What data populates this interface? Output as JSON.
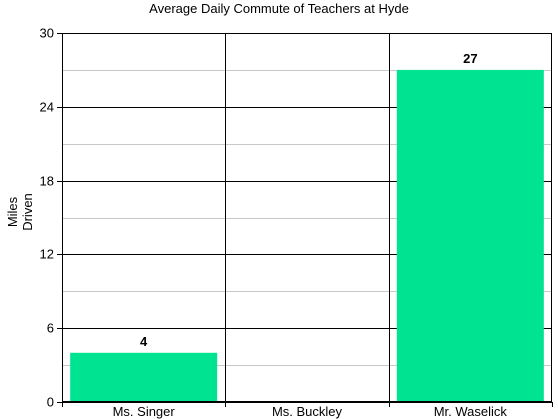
{
  "chart_data": {
    "type": "bar",
    "title": "Average Daily Commute of Teachers at Hyde",
    "xlabel": "",
    "ylabel": [
      "Miles",
      "Driven"
    ],
    "categories": [
      "Ms. Singer",
      "Ms. Buckley",
      "Mr. Waselick"
    ],
    "values": [
      4,
      0,
      27
    ],
    "data_labels": [
      "4",
      "",
      "27"
    ],
    "ylim": [
      0,
      30
    ],
    "yticks": [
      0,
      6,
      12,
      18,
      24,
      30
    ],
    "minor_grid_step": 3,
    "grid": true,
    "legend": "none",
    "colors": {
      "bar": "#00e391",
      "major_grid": "#000000",
      "minor_grid": "#c8c8c8",
      "axis": "#000000"
    }
  }
}
